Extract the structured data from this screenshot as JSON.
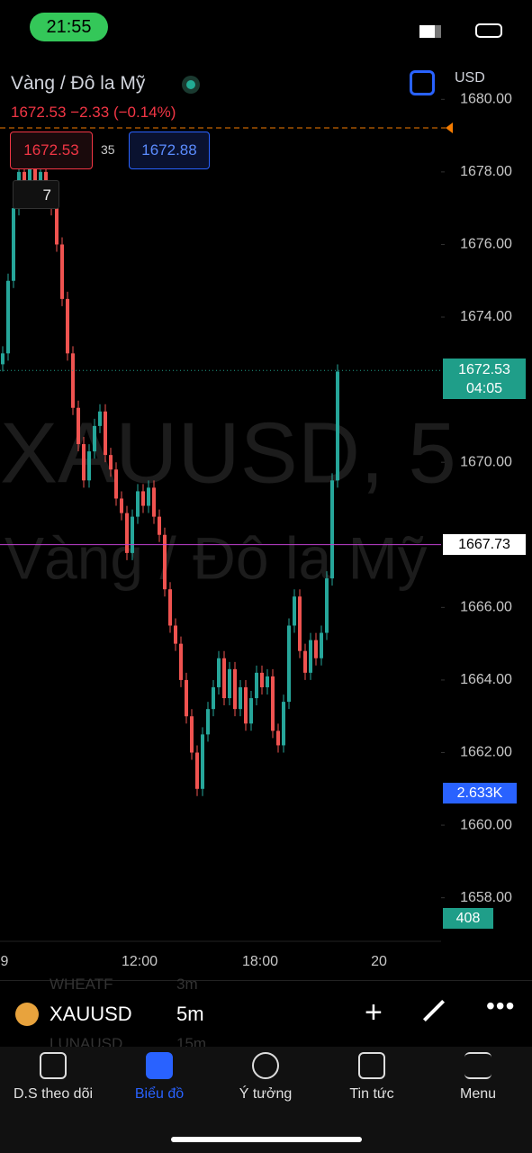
{
  "status_bar": {
    "time": "21:55"
  },
  "header": {
    "symbol_name": "Vàng / Đô la Mỹ",
    "currency": "USD",
    "last_price": "1672.53",
    "change": "−2.33",
    "change_percent": "(−0.14%)",
    "bid": "1672.53",
    "spread": "35",
    "ask": "1672.88",
    "indicator_count": "7"
  },
  "chart": {
    "type": "candlestick",
    "watermark_symbol": "XAUUSD, 5",
    "watermark_name": "Vàng / Đô la Mỹ",
    "ylim": [
      1656.8,
      1681.0
    ],
    "yticks": [
      {
        "value": 1680,
        "label": "1680.00"
      },
      {
        "value": 1678,
        "label": "1678.00"
      },
      {
        "value": 1676,
        "label": "1676.00"
      },
      {
        "value": 1674,
        "label": "1674.00"
      },
      {
        "value": 1670,
        "label": "1670.00"
      },
      {
        "value": 1666,
        "label": "1666.00"
      },
      {
        "value": 1664,
        "label": "1664.00"
      },
      {
        "value": 1662,
        "label": "1662.00"
      },
      {
        "value": 1660,
        "label": "1660.00"
      },
      {
        "value": 1658,
        "label": "1658.00"
      }
    ],
    "xticks": [
      "9",
      "12:00",
      "18:00",
      "20"
    ],
    "closes": [
      1673,
      1675,
      1677,
      1678,
      1677.5,
      1678.2,
      1677.6,
      1678,
      1677.3,
      1677,
      1676,
      1674.5,
      1673,
      1671.5,
      1670.5,
      1669.5,
      1670.3,
      1671,
      1671.4,
      1670.2,
      1669.8,
      1669,
      1668.6,
      1667.5,
      1668.5,
      1669.2,
      1668.8,
      1669.3,
      1668.5,
      1668,
      1666.5,
      1665.5,
      1665,
      1664,
      1663,
      1662,
      1661,
      1662.5,
      1663.2,
      1663.8,
      1664.6,
      1663.5,
      1664.3,
      1663.2,
      1663.8,
      1662.8,
      1663.5,
      1664.2,
      1663.8,
      1664.1,
      1662.6,
      1662.2,
      1663.4,
      1665.5,
      1666.3,
      1664.8,
      1664.2,
      1665.1,
      1664.6,
      1665.3,
      1666.8,
      1669.5,
      1672.5
    ],
    "up_color": "#26a69a",
    "down_color": "#ef5350",
    "last_price": 1672.53,
    "last_price_label": "1672.53",
    "countdown": "04:05",
    "hline_price": 1667.73,
    "hline_label": "1667.73",
    "hline_color": "#c040d0",
    "volume_ma_label": "2.633K",
    "volume_label": "408"
  },
  "toolbar": {
    "symbol": "XAUUSD",
    "interval": "5m",
    "hidden_items": [
      {
        "symbol": "WHEATF",
        "interval": "3m"
      },
      {
        "symbol": "LUNAUSD",
        "interval": "15m"
      }
    ]
  },
  "nav": {
    "tabs": [
      "D.S theo dõi",
      "Biểu đồ",
      "Ý tưởng",
      "Tin tức",
      "Menu"
    ]
  }
}
